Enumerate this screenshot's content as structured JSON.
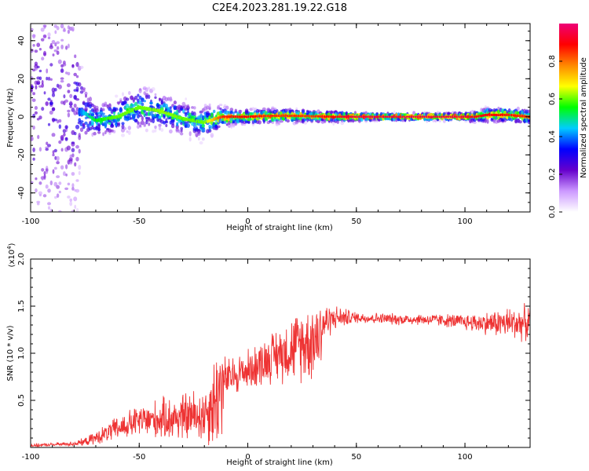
{
  "title": "C2E4.2023.281.19.22.G18",
  "colors": {
    "snr_line": "#ee3333",
    "axis": "#000000",
    "background": "#ffffff"
  },
  "chart_data": [
    {
      "type": "heatmap",
      "xlabel": "Height of straight line (km)",
      "ylabel": "Frequency (Hz)",
      "xlim": [
        -100,
        130
      ],
      "ylim": [
        -50,
        49
      ],
      "x_ticks": [
        -100,
        -50,
        0,
        50,
        100
      ],
      "x_tick_labels": [
        "-100",
        "-50",
        "0",
        "50",
        "100"
      ],
      "y_ticks": [
        -40,
        -20,
        0,
        20,
        40
      ],
      "y_tick_labels": [
        "-40",
        "-20",
        "0",
        "20",
        "40"
      ],
      "grid": false,
      "colorbar": {
        "label": "Normalized spectral amplitude",
        "range": [
          0,
          1
        ],
        "ticks": [
          0.0,
          0.2,
          0.4,
          0.6,
          0.8
        ],
        "tick_labels": [
          "0.0",
          "0.2",
          "0.4",
          "0.6",
          "0.8"
        ],
        "colormap": [
          "#ffffff",
          "#cc99ff",
          "#6600cc",
          "#0000ff",
          "#00ccff",
          "#00ff00",
          "#ffff00",
          "#ff8800",
          "#ff0000",
          "#ee0077"
        ]
      },
      "ridge": {
        "x": [
          -100,
          -90,
          -80,
          -75,
          -70,
          -60,
          -50,
          -40,
          -30,
          -20,
          -12,
          -5,
          0,
          10,
          20,
          30,
          40,
          50,
          60,
          70,
          80,
          90,
          100,
          105,
          110,
          120,
          130
        ],
        "freq": [
          3,
          4,
          3,
          2,
          -2,
          0,
          5,
          3,
          -1,
          -3,
          0,
          0,
          0,
          0.5,
          0.5,
          0.3,
          0,
          0,
          0,
          0,
          0,
          0,
          0,
          0,
          1,
          1,
          0
        ],
        "spread": [
          30,
          30,
          28,
          8,
          5,
          5,
          6,
          5,
          5,
          5,
          3,
          2,
          2,
          2,
          2,
          1.5,
          1.5,
          1.2,
          1,
          1,
          1,
          1,
          1,
          1.5,
          2,
          2,
          2
        ],
        "peak_amplitude": [
          0.3,
          0.3,
          0.3,
          0.45,
          0.55,
          0.6,
          0.6,
          0.62,
          0.6,
          0.6,
          0.85,
          0.88,
          0.9,
          0.85,
          0.85,
          0.85,
          0.9,
          0.95,
          0.95,
          0.95,
          0.95,
          0.95,
          0.95,
          0.9,
          0.9,
          0.88,
          0.85
        ]
      }
    },
    {
      "type": "line",
      "xlabel": "Height of straight line (km)",
      "ylabel": "SNR (10 * v/v)",
      "y_multiplier_label": "(x10",
      "y_multiplier_exp": "4",
      "y_multiplier_close": ")",
      "xlim": [
        -100,
        130
      ],
      "ylim": [
        0,
        2
      ],
      "x_ticks": [
        -100,
        -50,
        0,
        50,
        100
      ],
      "x_tick_labels": [
        "-100",
        "-50",
        "0",
        "50",
        "100"
      ],
      "y_ticks": [
        0.5,
        1.0,
        1.5,
        2.0
      ],
      "y_tick_labels": [
        "0.5",
        "1.0",
        "1.5",
        "2.0"
      ],
      "grid": false,
      "series": [
        {
          "envelope_x": [
            -100,
            -90,
            -80,
            -75,
            -70,
            -60,
            -50,
            -40,
            -30,
            -20,
            -15,
            -13,
            -10,
            -5,
            0,
            5,
            10,
            15,
            20,
            25,
            30,
            33,
            35,
            40,
            50,
            60,
            70,
            80,
            90,
            100,
            110,
            120,
            130
          ],
          "mean": [
            0.02,
            0.03,
            0.04,
            0.06,
            0.1,
            0.2,
            0.28,
            0.3,
            0.32,
            0.35,
            0.5,
            0.6,
            0.72,
            0.78,
            0.82,
            0.88,
            0.95,
            1.0,
            1.05,
            1.1,
            1.15,
            1.2,
            1.32,
            1.38,
            1.38,
            1.37,
            1.36,
            1.36,
            1.35,
            1.33,
            1.32,
            1.32,
            1.32
          ],
          "spread": [
            0.02,
            0.02,
            0.03,
            0.05,
            0.08,
            0.15,
            0.2,
            0.25,
            0.3,
            0.35,
            0.6,
            0.8,
            0.25,
            0.25,
            0.25,
            0.28,
            0.3,
            0.35,
            0.4,
            0.45,
            0.5,
            0.55,
            0.25,
            0.15,
            0.07,
            0.07,
            0.07,
            0.07,
            0.08,
            0.1,
            0.14,
            0.2,
            0.22
          ]
        }
      ]
    }
  ]
}
